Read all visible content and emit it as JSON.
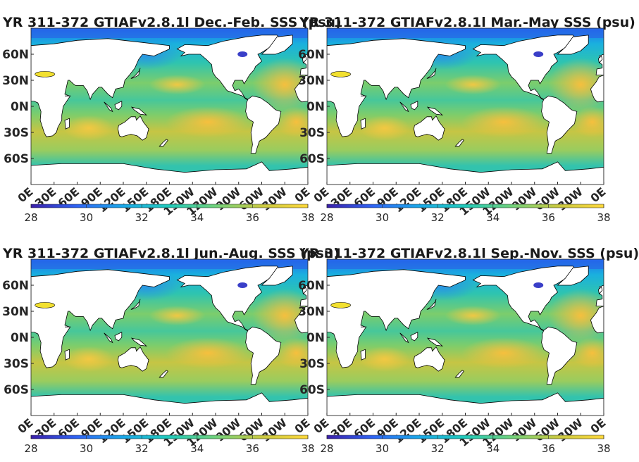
{
  "panels": [
    {
      "id": "djf",
      "title": "YR 311-372 GTIAFv2.8.1l Dec.-Feb. SSS (psu)"
    },
    {
      "id": "mam",
      "title": "YR 311-372 GTIAFv2.8.1l Mar.-May SSS (psu)"
    },
    {
      "id": "jja",
      "title": "YR 311-372 GTIAFv2.8.1l Jun.-Aug. SSS (psu)"
    },
    {
      "id": "son",
      "title": "YR 311-372 GTIAFv2.8.1l Sep.-Nov. SSS (psu)"
    }
  ],
  "lat_ticks": [
    "60N",
    "30N",
    "0N",
    "30S",
    "60S"
  ],
  "lon_ticks": [
    "0E",
    "30E",
    "60E",
    "90E",
    "120E",
    "150E",
    "180E",
    "150W",
    "120W",
    "90W",
    "60W",
    "30W",
    "0E"
  ],
  "colorbar": {
    "ticks": [
      "28",
      "30",
      "32",
      "34",
      "36",
      "38"
    ],
    "range": [
      28,
      38
    ],
    "colors": [
      "#3a1fa8",
      "#2e63f2",
      "#1aa7e6",
      "#20c8b8",
      "#6fd07a",
      "#c8c840",
      "#fcd73a"
    ]
  }
}
